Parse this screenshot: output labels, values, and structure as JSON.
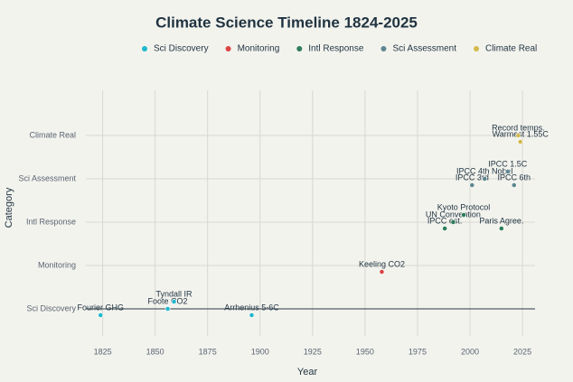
{
  "chart_data": {
    "type": "scatter",
    "title": "Climate Science Timeline 1824-2025",
    "x_label": "Year",
    "y_label": "Category",
    "categories": [
      "Sci Discovery",
      "Monitoring",
      "Intl Response",
      "Sci Assessment",
      "Climate Real"
    ],
    "xlim": [
      1817,
      2031
    ],
    "xticks": [
      1825,
      1850,
      1875,
      1900,
      1925,
      1950,
      1975,
      2000,
      2025
    ],
    "grid": true,
    "legend": "top",
    "series": [
      {
        "name": "Sci Discovery",
        "color": "#1fb8cd",
        "x": [
          1824,
          1856,
          1859,
          1896
        ],
        "labels": [
          "Fourier GHG",
          "Foote CO2",
          "Tyndall IR",
          "Arrhenius 5-6C"
        ]
      },
      {
        "name": "Monitoring",
        "color": "#db4545",
        "x": [
          1958
        ],
        "labels": [
          "Keeling CO2"
        ]
      },
      {
        "name": "Intl Response",
        "color": "#2e7d5b",
        "x": [
          1988,
          1992,
          1997,
          2015
        ],
        "labels": [
          "IPCC est.",
          "UN Convention",
          "Kyoto Protocol",
          "Paris Agree."
        ]
      },
      {
        "name": "Sci Assessment",
        "color": "#5d878f",
        "x": [
          2001,
          2007,
          2018,
          2021
        ],
        "labels": [
          "IPCC 3rd",
          "IPCC 4th Nobel",
          "IPCC 1.5C",
          "IPCC 6th"
        ]
      },
      {
        "name": "Climate Real",
        "color": "#d2ba4c",
        "x": [
          2024,
          2023
        ],
        "labels": [
          "Warmest 1.55C",
          "Record temps."
        ]
      }
    ]
  }
}
